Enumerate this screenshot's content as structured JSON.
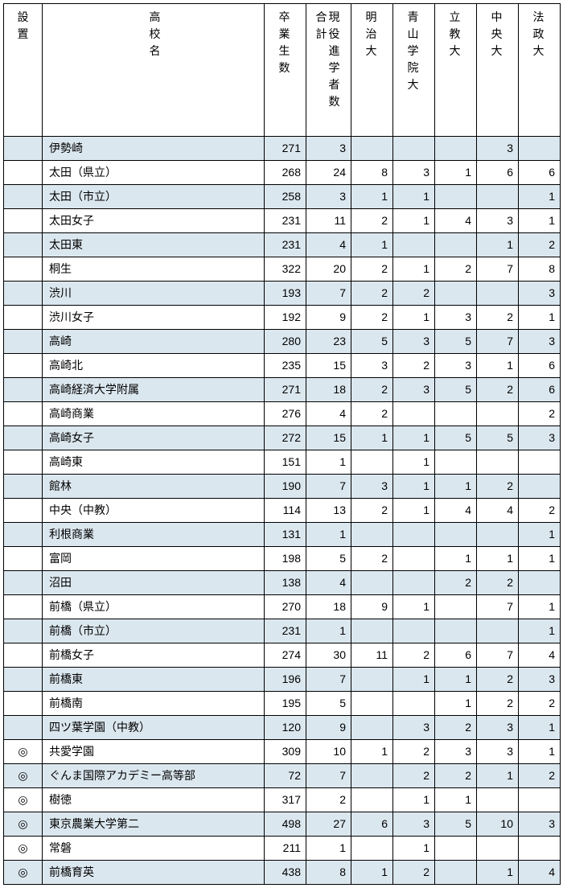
{
  "table": {
    "background_color": "#ffffff",
    "alt_row_color": "#dbe7ef",
    "border_color": "#000000",
    "font_size": 14,
    "columns": [
      {
        "key": "setchi",
        "label_chars": [
          "設",
          "置"
        ],
        "class": "col-setchi",
        "align": "center"
      },
      {
        "key": "name",
        "label_chars": [
          "高",
          "校",
          "名"
        ],
        "class": "col-name",
        "align": "left"
      },
      {
        "key": "grad",
        "label_chars": [
          "卒",
          "業",
          "生",
          "数"
        ],
        "class": "col-num",
        "align": "right"
      },
      {
        "key": "total",
        "label_chars": [
          "合",
          "計"
        ],
        "class": "col-wide",
        "align": "right",
        "sublabel_chars": [
          "現",
          "役",
          "進",
          "学",
          "者",
          "数"
        ]
      },
      {
        "key": "meiji",
        "label_chars": [
          "明",
          "治",
          "大"
        ],
        "class": "col-num",
        "align": "right"
      },
      {
        "key": "aoyama",
        "label_chars": [
          "青",
          "山",
          "学",
          "院",
          "大"
        ],
        "class": "col-num",
        "align": "right"
      },
      {
        "key": "rikkyo",
        "label_chars": [
          "立",
          "教",
          "大"
        ],
        "class": "col-num",
        "align": "right"
      },
      {
        "key": "chuo",
        "label_chars": [
          "中",
          "央",
          "大"
        ],
        "class": "col-num",
        "align": "right"
      },
      {
        "key": "hosei",
        "label_chars": [
          "法",
          "政",
          "大"
        ],
        "class": "col-num",
        "align": "right"
      }
    ],
    "rows": [
      {
        "alt": true,
        "setchi": "",
        "name": "伊勢崎",
        "grad": 271,
        "total": 3,
        "meiji": "",
        "aoyama": "",
        "rikkyo": "",
        "chuo": 3,
        "hosei": ""
      },
      {
        "alt": false,
        "setchi": "",
        "name": "太田（県立）",
        "grad": 268,
        "total": 24,
        "meiji": 8,
        "aoyama": 3,
        "rikkyo": 1,
        "chuo": 6,
        "hosei": 6
      },
      {
        "alt": true,
        "setchi": "",
        "name": "太田（市立）",
        "grad": 258,
        "total": 3,
        "meiji": 1,
        "aoyama": 1,
        "rikkyo": "",
        "chuo": "",
        "hosei": 1
      },
      {
        "alt": false,
        "setchi": "",
        "name": "太田女子",
        "grad": 231,
        "total": 11,
        "meiji": 2,
        "aoyama": 1,
        "rikkyo": 4,
        "chuo": 3,
        "hosei": 1
      },
      {
        "alt": true,
        "setchi": "",
        "name": "太田東",
        "grad": 231,
        "total": 4,
        "meiji": 1,
        "aoyama": "",
        "rikkyo": "",
        "chuo": 1,
        "hosei": 2
      },
      {
        "alt": false,
        "setchi": "",
        "name": "桐生",
        "grad": 322,
        "total": 20,
        "meiji": 2,
        "aoyama": 1,
        "rikkyo": 2,
        "chuo": 7,
        "hosei": 8
      },
      {
        "alt": true,
        "setchi": "",
        "name": "渋川",
        "grad": 193,
        "total": 7,
        "meiji": 2,
        "aoyama": 2,
        "rikkyo": "",
        "chuo": "",
        "hosei": 3
      },
      {
        "alt": false,
        "setchi": "",
        "name": "渋川女子",
        "grad": 192,
        "total": 9,
        "meiji": 2,
        "aoyama": 1,
        "rikkyo": 3,
        "chuo": 2,
        "hosei": 1
      },
      {
        "alt": true,
        "setchi": "",
        "name": "高崎",
        "grad": 280,
        "total": 23,
        "meiji": 5,
        "aoyama": 3,
        "rikkyo": 5,
        "chuo": 7,
        "hosei": 3
      },
      {
        "alt": false,
        "setchi": "",
        "name": "高崎北",
        "grad": 235,
        "total": 15,
        "meiji": 3,
        "aoyama": 2,
        "rikkyo": 3,
        "chuo": 1,
        "hosei": 6
      },
      {
        "alt": true,
        "setchi": "",
        "name": "高崎経済大学附属",
        "grad": 271,
        "total": 18,
        "meiji": 2,
        "aoyama": 3,
        "rikkyo": 5,
        "chuo": 2,
        "hosei": 6
      },
      {
        "alt": false,
        "setchi": "",
        "name": "高崎商業",
        "grad": 276,
        "total": 4,
        "meiji": 2,
        "aoyama": "",
        "rikkyo": "",
        "chuo": "",
        "hosei": 2
      },
      {
        "alt": true,
        "setchi": "",
        "name": "高崎女子",
        "grad": 272,
        "total": 15,
        "meiji": 1,
        "aoyama": 1,
        "rikkyo": 5,
        "chuo": 5,
        "hosei": 3
      },
      {
        "alt": false,
        "setchi": "",
        "name": "高崎東",
        "grad": 151,
        "total": 1,
        "meiji": "",
        "aoyama": 1,
        "rikkyo": "",
        "chuo": "",
        "hosei": ""
      },
      {
        "alt": true,
        "setchi": "",
        "name": "館林",
        "grad": 190,
        "total": 7,
        "meiji": 3,
        "aoyama": 1,
        "rikkyo": 1,
        "chuo": 2,
        "hosei": ""
      },
      {
        "alt": false,
        "setchi": "",
        "name": "中央（中教）",
        "grad": 114,
        "total": 13,
        "meiji": 2,
        "aoyama": 1,
        "rikkyo": 4,
        "chuo": 4,
        "hosei": 2
      },
      {
        "alt": true,
        "setchi": "",
        "name": "利根商業",
        "grad": 131,
        "total": 1,
        "meiji": "",
        "aoyama": "",
        "rikkyo": "",
        "chuo": "",
        "hosei": 1
      },
      {
        "alt": false,
        "setchi": "",
        "name": "富岡",
        "grad": 198,
        "total": 5,
        "meiji": 2,
        "aoyama": "",
        "rikkyo": 1,
        "chuo": 1,
        "hosei": 1
      },
      {
        "alt": true,
        "setchi": "",
        "name": "沼田",
        "grad": 138,
        "total": 4,
        "meiji": "",
        "aoyama": "",
        "rikkyo": 2,
        "chuo": 2,
        "hosei": ""
      },
      {
        "alt": false,
        "setchi": "",
        "name": "前橋（県立）",
        "grad": 270,
        "total": 18,
        "meiji": 9,
        "aoyama": 1,
        "rikkyo": "",
        "chuo": 7,
        "hosei": 1
      },
      {
        "alt": true,
        "setchi": "",
        "name": "前橋（市立）",
        "grad": 231,
        "total": 1,
        "meiji": "",
        "aoyama": "",
        "rikkyo": "",
        "chuo": "",
        "hosei": 1
      },
      {
        "alt": false,
        "setchi": "",
        "name": "前橋女子",
        "grad": 274,
        "total": 30,
        "meiji": 11,
        "aoyama": 2,
        "rikkyo": 6,
        "chuo": 7,
        "hosei": 4
      },
      {
        "alt": true,
        "setchi": "",
        "name": "前橋東",
        "grad": 196,
        "total": 7,
        "meiji": "",
        "aoyama": 1,
        "rikkyo": 1,
        "chuo": 2,
        "hosei": 3
      },
      {
        "alt": false,
        "setchi": "",
        "name": "前橋南",
        "grad": 195,
        "total": 5,
        "meiji": "",
        "aoyama": "",
        "rikkyo": 1,
        "chuo": 2,
        "hosei": 2
      },
      {
        "alt": true,
        "setchi": "",
        "name": "四ツ葉学園（中教）",
        "grad": 120,
        "total": 9,
        "meiji": "",
        "aoyama": 3,
        "rikkyo": 2,
        "chuo": 3,
        "hosei": 1
      },
      {
        "alt": false,
        "setchi": "◎",
        "name": "共愛学園",
        "grad": 309,
        "total": 10,
        "meiji": 1,
        "aoyama": 2,
        "rikkyo": 3,
        "chuo": 3,
        "hosei": 1
      },
      {
        "alt": true,
        "setchi": "◎",
        "name": "ぐんま国際アカデミー高等部",
        "grad": 72,
        "total": 7,
        "meiji": "",
        "aoyama": 2,
        "rikkyo": 2,
        "chuo": 1,
        "hosei": 2
      },
      {
        "alt": false,
        "setchi": "◎",
        "name": "樹徳",
        "grad": 317,
        "total": 2,
        "meiji": "",
        "aoyama": 1,
        "rikkyo": 1,
        "chuo": "",
        "hosei": ""
      },
      {
        "alt": true,
        "setchi": "◎",
        "name": "東京農業大学第二",
        "grad": 498,
        "total": 27,
        "meiji": 6,
        "aoyama": 3,
        "rikkyo": 5,
        "chuo": 10,
        "hosei": 3
      },
      {
        "alt": false,
        "setchi": "◎",
        "name": "常磐",
        "grad": 211,
        "total": 1,
        "meiji": "",
        "aoyama": 1,
        "rikkyo": "",
        "chuo": "",
        "hosei": ""
      },
      {
        "alt": true,
        "setchi": "◎",
        "name": "前橋育英",
        "grad": 438,
        "total": 8,
        "meiji": 1,
        "aoyama": 2,
        "rikkyo": "",
        "chuo": 1,
        "hosei": 4
      }
    ]
  }
}
